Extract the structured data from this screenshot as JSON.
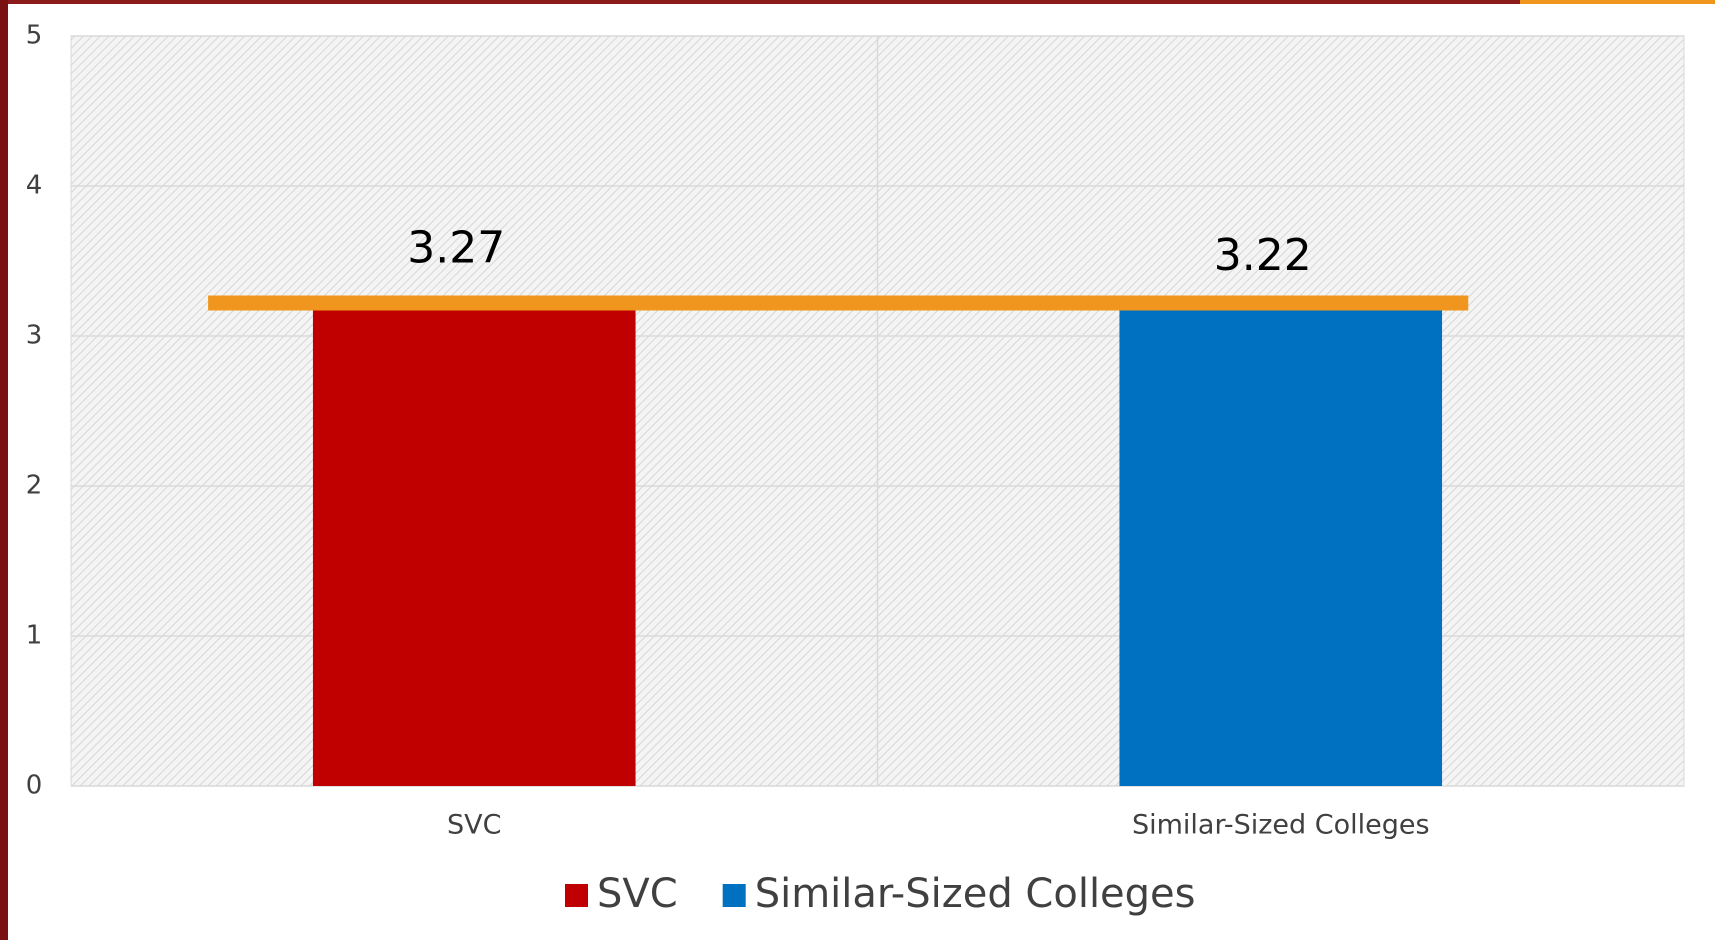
{
  "chart_data": {
    "type": "bar",
    "categories": [
      "SVC",
      "Similar-Sized Colleges"
    ],
    "series": [
      {
        "name": "SVC",
        "color": "#c00000",
        "values": [
          3.27,
          null
        ]
      },
      {
        "name": "Similar-Sized Colleges",
        "color": "#0070c0",
        "values": [
          null,
          3.22
        ]
      }
    ],
    "reference_line": {
      "value": 3.22,
      "color": "#f0961e"
    },
    "ylim": [
      0,
      5
    ],
    "yticks": [
      0,
      1,
      2,
      3,
      4,
      5
    ],
    "grid": true,
    "legend": "bottom"
  }
}
